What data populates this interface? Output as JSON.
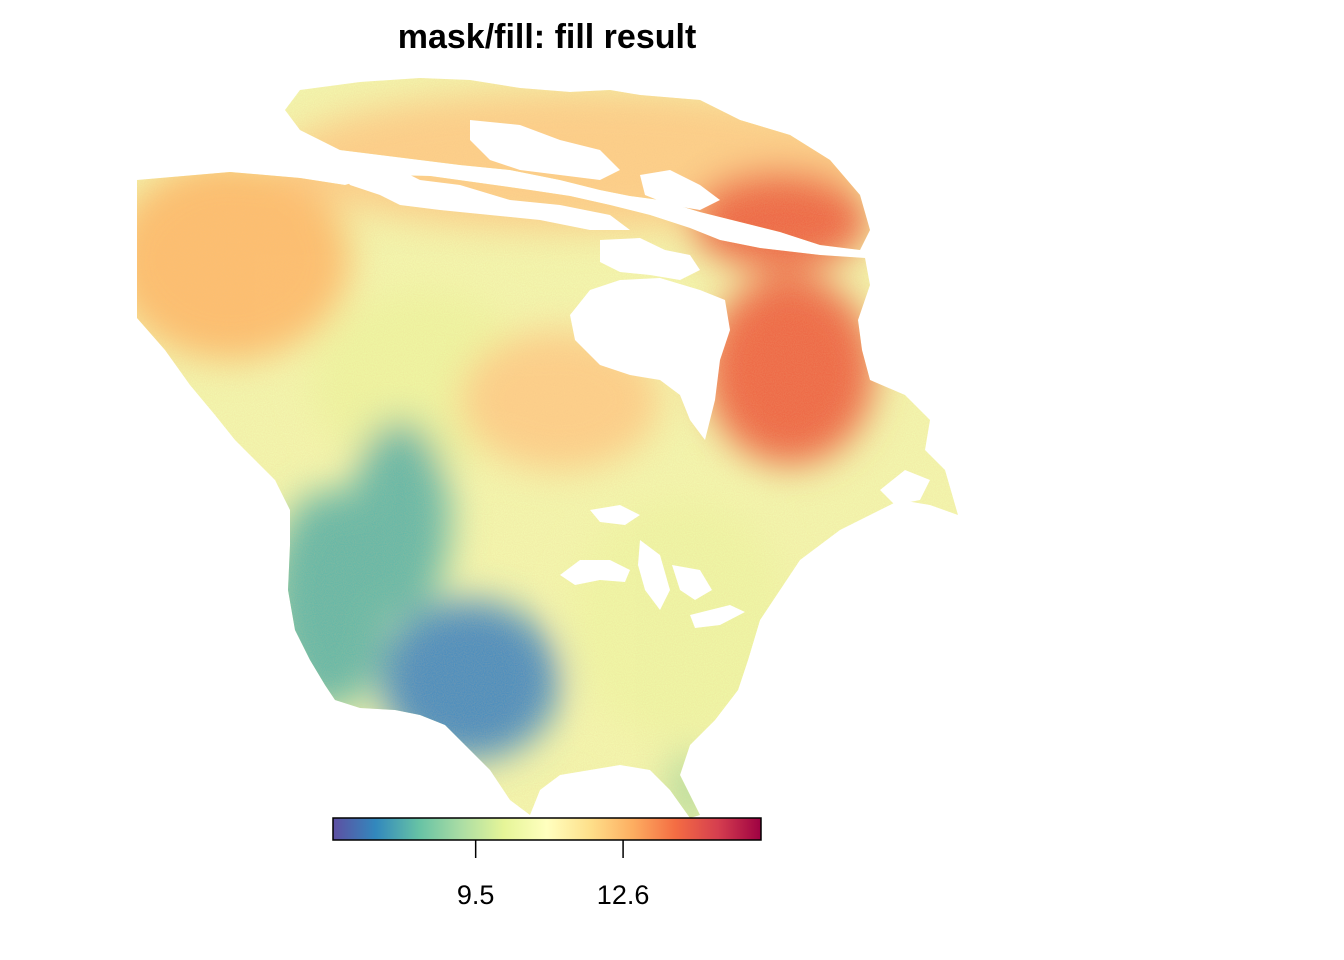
{
  "title": "mask/fill: fill result",
  "legend": {
    "palette": [
      "#5e4fa2",
      "#3288bd",
      "#66c2a5",
      "#abdda4",
      "#e6f598",
      "#ffffbf",
      "#fee08b",
      "#fdae61",
      "#f46d43",
      "#d53e4f",
      "#9e0142"
    ],
    "ticks": [
      {
        "label": "9.5",
        "value": 9.5
      },
      {
        "label": "12.6",
        "value": 12.6
      }
    ],
    "range": [
      6.5,
      15.5
    ]
  },
  "colors": {
    "northwest": "#fdbf6f",
    "arctic": "#fdd08a",
    "prairie": "#eef6a2",
    "quebec": "#ee6b47",
    "west_coast": "#66b9a8",
    "southwest": "#4d8fbf",
    "east": "#eff7a6",
    "florida": "#b9e1a1",
    "water": "#ffffff"
  }
}
